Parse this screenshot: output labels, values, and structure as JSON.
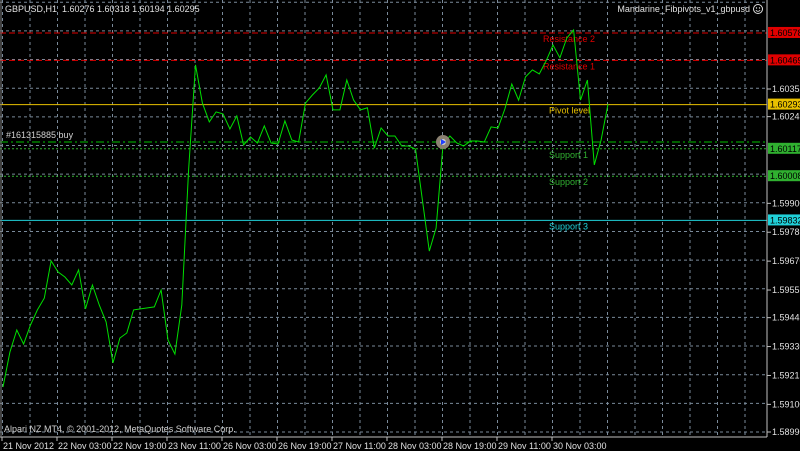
{
  "header": {
    "symbol_info": "GBPUSD,H1  1.60276 1.60318 1.60194 1.60295",
    "indicator_name": "Mandarine_Fibpivots_v1_gbpusd",
    "indicator_icon": "smiley-icon"
  },
  "footer": {
    "copyright": "Alpari NZ MT4, © 2001-2012, MetaQuotes Software Corp."
  },
  "order": {
    "label": "#161315885 buy",
    "price": 1.60144,
    "color": "#00c000"
  },
  "colors": {
    "background": "#000000",
    "grid": "#8090a0",
    "price_line": "#00e000",
    "axis": "#c0c0c0"
  },
  "chart_data": {
    "type": "line",
    "timeframe": "H1",
    "title": "GBPUSD,H1",
    "ylim": [
      1.5899,
      1.6064
    ],
    "grid": true,
    "x_ticks": [
      "21 Nov 2012",
      "22 Nov 03:00",
      "22 Nov 19:00",
      "23 Nov 11:00",
      "26 Nov 03:00",
      "26 Nov 19:00",
      "27 Nov 11:00",
      "28 Nov 03:00",
      "28 Nov 19:00",
      "29 Nov 11:00",
      "30 Nov 03:00"
    ],
    "y_ticks": [
      "1.60355",
      "1.60245",
      "1.59900",
      "1.59785",
      "1.59670",
      "1.59555",
      "1.59445",
      "1.59330",
      "1.59215",
      "1.59100",
      "1.58990"
    ],
    "series": [
      {
        "values": [
          1.59169,
          1.59308,
          1.59396,
          1.5934,
          1.59416,
          1.59476,
          1.59523,
          1.59671,
          1.59627,
          1.59607,
          1.59575,
          1.59635,
          1.5948,
          1.59575,
          1.59495,
          1.59428,
          1.59265,
          1.59364,
          1.59384,
          1.59476,
          1.5948,
          1.59484,
          1.59488,
          1.59555,
          1.59356,
          1.593,
          1.59495,
          1.60033,
          1.60451,
          1.60299,
          1.60224,
          1.60264,
          1.60256,
          1.60196,
          1.60248,
          1.60132,
          1.60164,
          1.6014,
          1.60208,
          1.6014,
          1.60136,
          1.60228,
          1.60152,
          1.60144,
          1.60299,
          1.60331,
          1.60359,
          1.60411,
          1.60272,
          1.60272,
          1.60391,
          1.60311,
          1.60272,
          1.6028,
          1.6012,
          1.602,
          1.60168,
          1.60168,
          1.60128,
          1.60128,
          1.60116,
          1.59913,
          1.5971,
          1.59802,
          1.60132,
          1.60168,
          1.6014,
          1.60128,
          1.60148,
          1.60148,
          1.60144,
          1.60204,
          1.602,
          1.60276,
          1.60375,
          1.60311,
          1.60403,
          1.60431,
          1.60415,
          1.60467,
          1.6053,
          1.60479,
          1.60558,
          1.6059,
          1.60311,
          1.60391,
          1.60053,
          1.60152,
          1.60295
        ]
      }
    ],
    "levels": [
      {
        "name": "Resistance 2",
        "price": 1.60578,
        "price_label": "1.60578",
        "color": "#e00000",
        "style": "dash"
      },
      {
        "name": "Resistance 1",
        "price": 1.60469,
        "price_label": "1.60469",
        "color": "#e00000",
        "style": "dash"
      },
      {
        "name": "Pivot level",
        "price": 1.60293,
        "price_label": "1.60293",
        "color": "#e8c000",
        "style": "solid"
      },
      {
        "name": "Support 1",
        "price": 1.60117,
        "price_label": "1.60117",
        "color": "#30b030",
        "style": "dot"
      },
      {
        "name": "Support 2",
        "price": 1.60008,
        "price_label": "1.60008",
        "color": "#30b030",
        "style": "dot"
      },
      {
        "name": "Support 3",
        "price": 1.59832,
        "price_label": "1.59832",
        "color": "#20d0d8",
        "style": "solid"
      }
    ]
  }
}
